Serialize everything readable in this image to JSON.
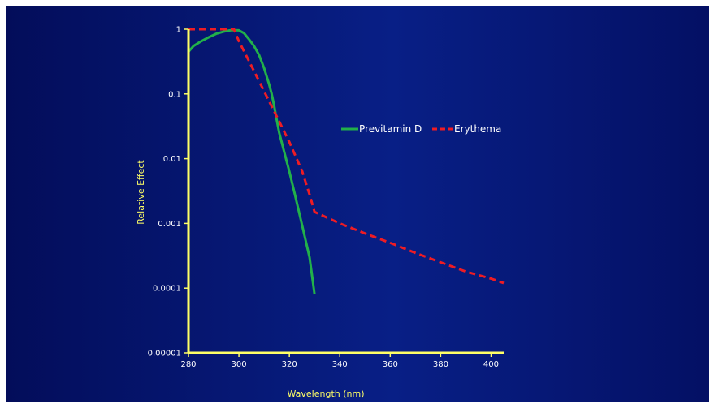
{
  "chart_data": {
    "type": "line",
    "title": "",
    "xlabel": "Wavelength (nm)",
    "ylabel": "Relative Effect",
    "xlim": [
      280,
      405
    ],
    "ylim": [
      1e-05,
      1
    ],
    "y_scale": "log",
    "x_ticks": [
      280,
      300,
      320,
      340,
      360,
      380,
      400
    ],
    "x_tick_labels": [
      "280",
      "300",
      "320",
      "340",
      "360",
      "380",
      "400"
    ],
    "y_ticks": [
      1e-05,
      0.0001,
      0.001,
      0.01,
      0.1,
      1
    ],
    "y_tick_labels": [
      "0.00001",
      "0.0001",
      "0.001",
      "0.01",
      "0.1",
      "1"
    ],
    "grid": false,
    "legend_position": "right-center",
    "axis_color": "#ffff66",
    "series": [
      {
        "name": "Previtamin D",
        "color": "#22b04a",
        "style": "solid",
        "x": [
          280,
          282,
          285,
          288,
          291,
          294,
          297,
          300,
          302,
          304,
          306,
          308,
          310,
          312,
          313,
          314,
          315,
          316,
          318,
          320,
          322,
          324,
          326,
          328,
          330
        ],
        "y": [
          0.45,
          0.55,
          0.65,
          0.75,
          0.85,
          0.92,
          0.97,
          0.96,
          0.87,
          0.7,
          0.55,
          0.4,
          0.25,
          0.14,
          0.1,
          0.065,
          0.04,
          0.025,
          0.0125,
          0.0063,
          0.003,
          0.0014,
          0.00065,
          0.0003,
          8e-05
        ]
      },
      {
        "name": "Erythema",
        "color": "#ee1c24",
        "style": "dashed",
        "x": [
          280,
          290,
          298,
          300,
          305,
          310,
          315,
          320,
          325,
          328,
          330,
          340,
          350,
          360,
          370,
          380,
          390,
          400,
          405
        ],
        "y": [
          1,
          1,
          1,
          0.65,
          0.27,
          0.11,
          0.045,
          0.018,
          0.0065,
          0.0028,
          0.0015,
          0.001,
          0.0007,
          0.0005,
          0.00035,
          0.00025,
          0.00018,
          0.00014,
          0.00012
        ]
      }
    ]
  }
}
